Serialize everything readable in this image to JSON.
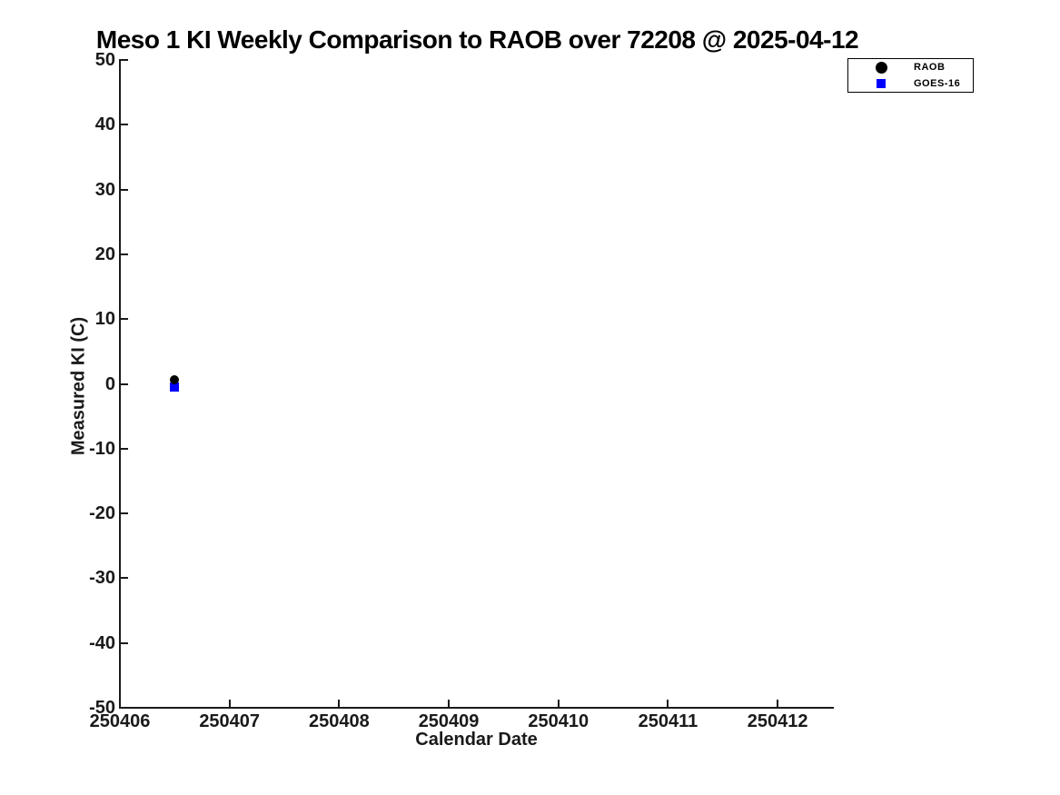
{
  "title": "Meso 1 KI Weekly Comparison to RAOB over 72208 @ 2025-04-12",
  "chart_data": {
    "type": "scatter",
    "title": "Meso 1 KI Weekly Comparison to RAOB over 72208 @ 2025-04-12",
    "xlabel": "Calendar Date",
    "ylabel": "Measured KI (C)",
    "xlim": [
      250406,
      250412.5
    ],
    "ylim": [
      -50,
      50
    ],
    "x_ticks": [
      250406,
      250407,
      250408,
      250409,
      250410,
      250411,
      250412
    ],
    "y_ticks": [
      -50,
      -40,
      -30,
      -20,
      -10,
      0,
      10,
      20,
      30,
      40,
      50
    ],
    "grid": false,
    "legend": {
      "position": "top-right",
      "entries": [
        {
          "name": "RAOB",
          "marker": "circle",
          "color": "#000000"
        },
        {
          "name": "GOES-16",
          "marker": "square",
          "color": "#0000ff"
        }
      ]
    },
    "series": [
      {
        "name": "RAOB",
        "marker": "circle",
        "color": "#000000",
        "points": [
          {
            "x": 250406.5,
            "y": 0.7
          }
        ]
      },
      {
        "name": "GOES-16",
        "marker": "square",
        "color": "#0000ff",
        "points": [
          {
            "x": 250406.5,
            "y": -0.5
          }
        ]
      }
    ]
  }
}
